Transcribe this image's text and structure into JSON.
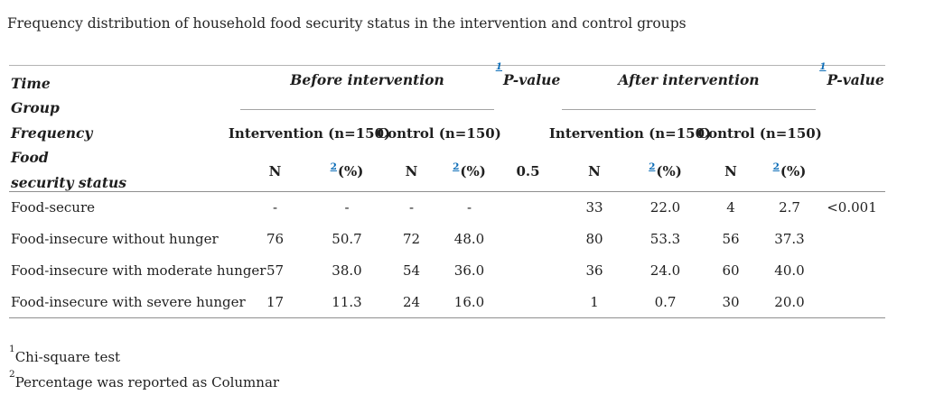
{
  "title": "Frequency distribution of household food security status in the intervention and control groups",
  "table": {
    "stub_lines": [
      "Time",
      "Group",
      "Frequency",
      "Food",
      "security status"
    ],
    "before_label": "Before intervention",
    "after_label": "After intervention",
    "pvalue_label": "P-value",
    "ref_chi": "1",
    "ref_pct": "2",
    "col_intervention": "Intervention (n=150)",
    "col_control": "Control (n=150)",
    "col_n": "N",
    "col_pct": "(%)",
    "pvalue_before": "0.5",
    "pvalue_after": "<0.001",
    "rows": [
      {
        "label": "Food-secure",
        "values": [
          "-",
          "-",
          "-",
          "-",
          "33",
          "22.0",
          "4",
          "2.7"
        ]
      },
      {
        "label": "Food-insecure without hunger",
        "values": [
          "76",
          "50.7",
          "72",
          "48.0",
          "80",
          "53.3",
          "56",
          "37.3"
        ]
      },
      {
        "label": "Food-insecure with moderate hunger",
        "values": [
          "57",
          "38.0",
          "54",
          "36.0",
          "36",
          "24.0",
          "60",
          "40.0"
        ]
      },
      {
        "label": "Food-insecure with severe hunger",
        "values": [
          "17",
          "11.3",
          "24",
          "16.0",
          "1",
          "0.7",
          "30",
          "20.0"
        ]
      }
    ]
  },
  "footnotes": [
    {
      "ref": "1",
      "text": "Chi-square test"
    },
    {
      "ref": "2",
      "text": "Percentage was reported as Columnar"
    }
  ]
}
